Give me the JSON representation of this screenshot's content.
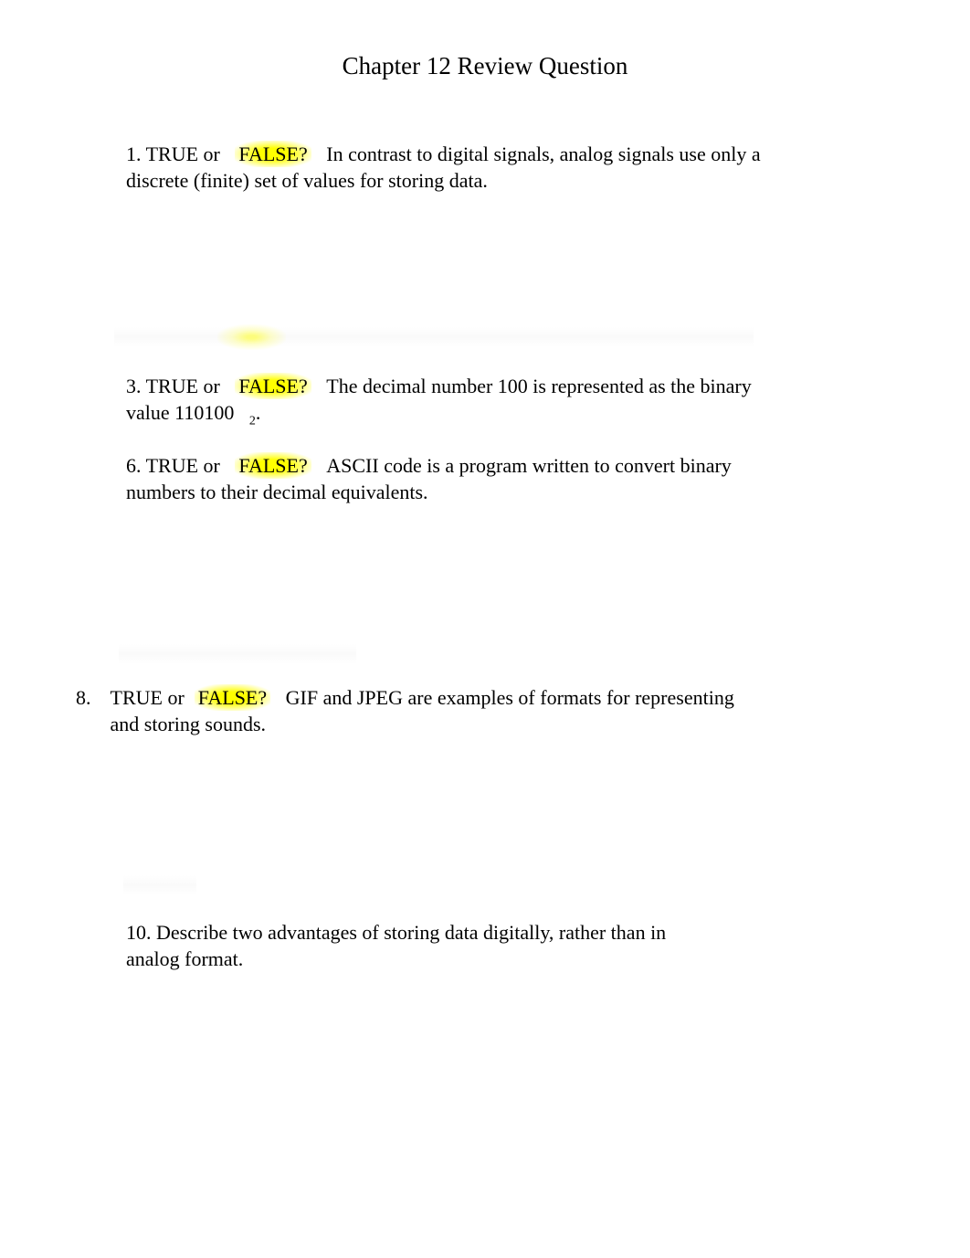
{
  "title": "Chapter 12 Review Question",
  "questions": {
    "q1": {
      "prefix": "1. TRUE or",
      "highlighted": "FALSE?",
      "rest": "In contrast to digital signals, analog signals use only a discrete (finite) set of values for storing data."
    },
    "q3": {
      "prefix": "3. TRUE or",
      "highlighted": "FALSE?",
      "rest_part1": "The decimal number 100 is represented as the binary value 110100",
      "subscript": "2",
      "rest_part2": "."
    },
    "q6": {
      "prefix": "6. TRUE or",
      "highlighted": "FALSE?",
      "rest": "ASCII code is a program written to convert binary numbers to their decimal equivalents."
    },
    "q8": {
      "number": "8.",
      "prefix": "TRUE or",
      "highlighted": "FALSE?",
      "rest": "GIF and JPEG are examples of formats for representing and storing sounds."
    },
    "q10": {
      "text": "10. Describe two advantages of storing data digitally, rather than in analog format."
    }
  },
  "colors": {
    "background": "#ffffff",
    "text": "#000000",
    "highlight": "#ffff00"
  },
  "fonts": {
    "family": "Times New Roman",
    "title_size": 27,
    "body_size": 22
  }
}
